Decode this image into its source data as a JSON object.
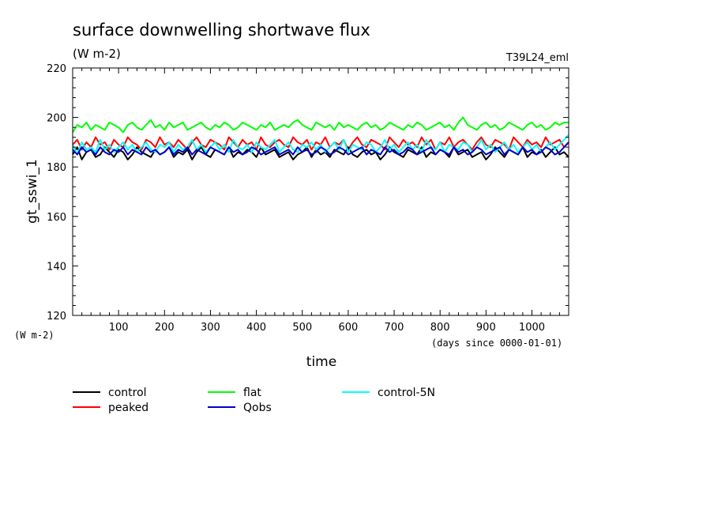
{
  "header": {
    "title": "surface downwelling shortwave flux",
    "units": "(W m-2)",
    "run_tag": "T39L24_eml"
  },
  "chart_data": {
    "type": "line",
    "title": "surface downwelling shortwave flux",
    "subtitle": "(W m-2)",
    "xlabel": "time",
    "x_units": "(days since 0000-01-01)",
    "ylabel": "gt_sswi_1",
    "y_units": "(W m-2)",
    "xlim": [
      0,
      1080
    ],
    "ylim": [
      120,
      220
    ],
    "x_ticks": [
      100,
      200,
      300,
      400,
      500,
      600,
      700,
      800,
      900,
      1000
    ],
    "y_ticks": [
      120,
      140,
      160,
      180,
      200,
      220
    ],
    "x_sample_step": 10,
    "grid": false,
    "legend_position": "below-left",
    "series": [
      {
        "name": "control",
        "color": "#000000",
        "values": [
          185,
          188,
          183,
          186,
          187,
          184,
          185,
          188,
          186,
          184,
          187,
          186,
          183,
          185,
          188,
          186,
          185,
          184,
          187,
          185,
          186,
          188,
          184,
          186,
          185,
          187,
          183,
          186,
          188,
          185,
          184,
          187,
          186,
          185,
          188,
          184,
          186,
          185,
          187,
          186,
          184,
          188,
          185,
          186,
          187,
          184,
          185,
          186,
          183,
          185,
          186,
          188,
          184,
          187,
          185,
          186,
          184,
          187,
          186,
          185,
          188,
          185,
          184,
          186,
          187,
          185,
          186,
          183,
          185,
          188,
          186,
          185,
          184,
          187,
          186,
          185,
          188,
          184,
          186,
          185,
          187,
          186,
          184,
          188,
          185,
          186,
          187,
          184,
          185,
          186,
          183,
          185,
          188,
          186,
          184,
          187,
          186,
          185,
          188,
          184,
          186,
          185,
          187,
          184,
          186,
          188,
          185,
          186,
          184
        ]
      },
      {
        "name": "peaked",
        "color": "#ff0000",
        "values": [
          189,
          191,
          187,
          190,
          188,
          192,
          189,
          190,
          187,
          191,
          189,
          188,
          192,
          190,
          189,
          187,
          191,
          190,
          188,
          192,
          189,
          190,
          188,
          191,
          189,
          187,
          190,
          192,
          189,
          188,
          191,
          190,
          189,
          187,
          192,
          190,
          188,
          191,
          189,
          190,
          187,
          192,
          189,
          188,
          190,
          191,
          189,
          188,
          192,
          190,
          189,
          191,
          187,
          190,
          189,
          192,
          188,
          190,
          189,
          191,
          187,
          190,
          192,
          189,
          188,
          191,
          190,
          189,
          187,
          192,
          190,
          188,
          191,
          189,
          190,
          188,
          192,
          189,
          191,
          187,
          190,
          189,
          192,
          188,
          190,
          191,
          189,
          187,
          190,
          192,
          189,
          188,
          191,
          190,
          189,
          187,
          192,
          190,
          188,
          191,
          189,
          190,
          188,
          192,
          189,
          190,
          191,
          188,
          190
        ]
      },
      {
        "name": "flat",
        "color": "#00ff00",
        "values": [
          194,
          197,
          196,
          198,
          195,
          197,
          196,
          195,
          198,
          197,
          196,
          194,
          197,
          198,
          196,
          195,
          197,
          199,
          196,
          197,
          195,
          198,
          196,
          197,
          198,
          195,
          196,
          197,
          198,
          196,
          195,
          197,
          196,
          198,
          197,
          195,
          196,
          198,
          197,
          196,
          195,
          197,
          196,
          198,
          195,
          196,
          197,
          196,
          198,
          199,
          197,
          196,
          195,
          198,
          197,
          196,
          197,
          195,
          198,
          196,
          197,
          196,
          195,
          197,
          198,
          196,
          197,
          195,
          196,
          198,
          197,
          196,
          195,
          197,
          196,
          198,
          197,
          195,
          196,
          197,
          198,
          196,
          197,
          195,
          198,
          200,
          197,
          196,
          195,
          197,
          198,
          196,
          197,
          195,
          196,
          198,
          197,
          196,
          195,
          197,
          198,
          196,
          197,
          195,
          196,
          198,
          197,
          198,
          198
        ]
      },
      {
        "name": "control-5N",
        "color": "#00ffff",
        "values": [
          189,
          185,
          190,
          187,
          188,
          186,
          191,
          187,
          189,
          186,
          188,
          190,
          187,
          189,
          186,
          188,
          190,
          187,
          186,
          189,
          188,
          190,
          186,
          189,
          187,
          188,
          191,
          187,
          189,
          186,
          188,
          190,
          187,
          189,
          186,
          191,
          188,
          187,
          189,
          186,
          190,
          188,
          187,
          189,
          191,
          186,
          188,
          190,
          187,
          186,
          189,
          188,
          190,
          187,
          189,
          186,
          188,
          190,
          187,
          191,
          186,
          189,
          188,
          187,
          190,
          189,
          186,
          188,
          191,
          187,
          189,
          186,
          188,
          190,
          187,
          189,
          186,
          191,
          188,
          187,
          190,
          186,
          189,
          188,
          187,
          190,
          189,
          186,
          188,
          191,
          187,
          189,
          186,
          188,
          190,
          187,
          189,
          186,
          188,
          190,
          187,
          189,
          186,
          188,
          190,
          187,
          189,
          191,
          193
        ]
      },
      {
        "name": "Qobs",
        "color": "#0000cc",
        "values": [
          187,
          185,
          188,
          186,
          187,
          185,
          188,
          186,
          185,
          187,
          186,
          188,
          185,
          187,
          186,
          185,
          188,
          186,
          187,
          185,
          186,
          188,
          185,
          187,
          186,
          188,
          185,
          187,
          186,
          185,
          188,
          187,
          186,
          185,
          188,
          186,
          187,
          185,
          186,
          188,
          187,
          185,
          186,
          187,
          188,
          185,
          186,
          187,
          185,
          188,
          186,
          187,
          185,
          186,
          188,
          187,
          185,
          186,
          188,
          187,
          185,
          186,
          187,
          188,
          185,
          187,
          186,
          185,
          188,
          186,
          187,
          185,
          186,
          188,
          187,
          185,
          186,
          187,
          188,
          185,
          187,
          186,
          185,
          188,
          186,
          187,
          185,
          186,
          188,
          187,
          185,
          186,
          187,
          188,
          185,
          187,
          186,
          185,
          188,
          186,
          187,
          185,
          186,
          188,
          187,
          185,
          186,
          188,
          190
        ]
      }
    ]
  },
  "legend": {
    "items": [
      {
        "label": "control",
        "color": "#000000"
      },
      {
        "label": "peaked",
        "color": "#ff0000"
      },
      {
        "label": "flat",
        "color": "#00ff00"
      },
      {
        "label": "Qobs",
        "color": "#0000cc"
      },
      {
        "label": "control-5N",
        "color": "#00ffff"
      }
    ]
  }
}
